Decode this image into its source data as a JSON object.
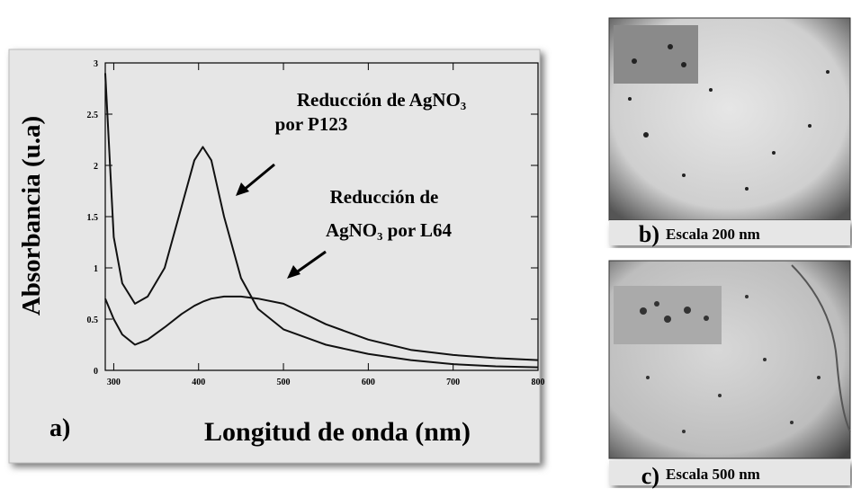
{
  "chart_data": {
    "type": "line",
    "ylabel": "Absorbancia (u.a)",
    "xlabel": "Longitud de onda (nm)",
    "panel_label": "a)",
    "annotations": [
      "Reducción de AgNO₃",
      "por P123",
      "Reducción de",
      "AgNO₃ por L64"
    ],
    "x": [
      290,
      300,
      310,
      325,
      340,
      360,
      380,
      395,
      405,
      415,
      430,
      450,
      470,
      500,
      550,
      600,
      650,
      700,
      750,
      800
    ],
    "series": [
      {
        "color": "#111111",
        "values": [
          2.9,
          1.3,
          0.85,
          0.65,
          0.72,
          1.0,
          1.6,
          2.05,
          2.18,
          2.05,
          1.5,
          0.9,
          0.6,
          0.4,
          0.25,
          0.16,
          0.1,
          0.06,
          0.04,
          0.03
        ]
      },
      {
        "color": "#111111",
        "values": [
          0.7,
          0.5,
          0.35,
          0.25,
          0.3,
          0.42,
          0.55,
          0.63,
          0.67,
          0.7,
          0.72,
          0.72,
          0.7,
          0.65,
          0.45,
          0.3,
          0.2,
          0.15,
          0.12,
          0.1
        ]
      }
    ],
    "xlim": [
      290,
      800
    ],
    "ylim": [
      0,
      3
    ],
    "xticks": [
      300,
      400,
      500,
      600,
      700,
      800
    ],
    "yticks": [
      0,
      0.5,
      1,
      1.5,
      2,
      2.5,
      3
    ]
  },
  "panels": [
    {
      "label": "b)",
      "caption": "Escala 200 nm"
    },
    {
      "label": "c)",
      "caption": "Escala 500 nm"
    }
  ]
}
